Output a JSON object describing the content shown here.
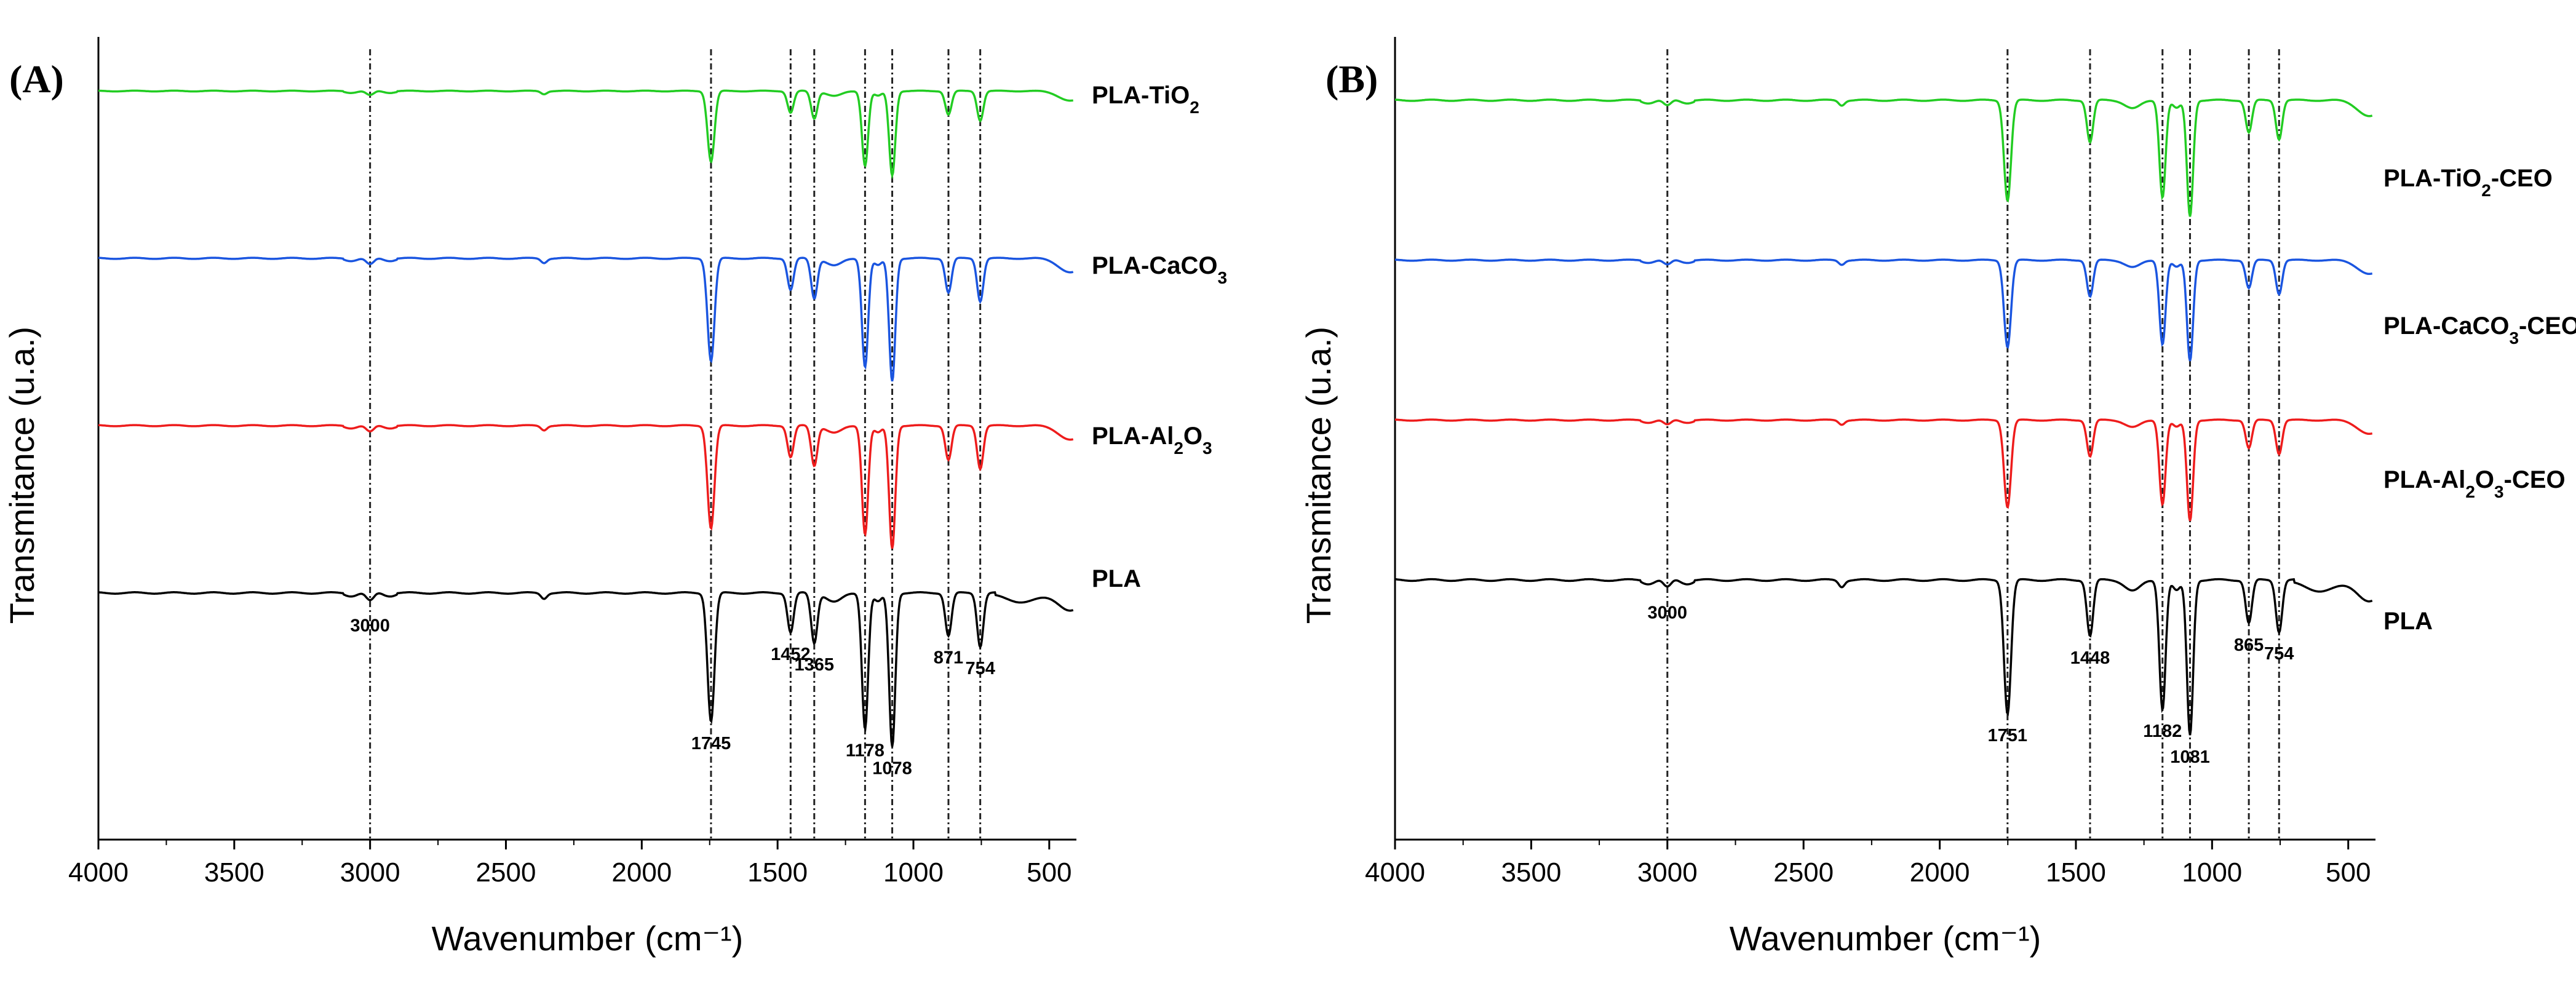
{
  "chart_data": [
    {
      "type": "line",
      "panel": "(A)",
      "xlabel": "Wavenumber (cm⁻¹)",
      "ylabel": "Transmitance (u.a.)",
      "xlim": [
        4000,
        400
      ],
      "x_ticks": [
        4000,
        3500,
        3000,
        2500,
        2000,
        1500,
        1000,
        500
      ],
      "grid": false,
      "legend": "right, beside each curve",
      "marker_lines": [
        3000,
        1745,
        1452,
        1365,
        1178,
        1078,
        871,
        754
      ],
      "series": [
        {
          "name": "PLA-TiO₂",
          "color": "#22cc22",
          "offset": 3,
          "scale": 0.55
        },
        {
          "name": "PLA-CaCO₃",
          "color": "#1a55e0",
          "offset": 2,
          "scale": 0.8
        },
        {
          "name": "PLA-Al₂O₃",
          "color": "#ee1c1c",
          "offset": 1,
          "scale": 0.8
        },
        {
          "name": "PLA",
          "color": "#000000",
          "offset": 0,
          "scale": 1.0
        }
      ],
      "peaks": [
        {
          "wavenumber": 3000,
          "label": "3000",
          "depth": 0.06
        },
        {
          "wavenumber": 1745,
          "label": "1745",
          "depth": 0.72
        },
        {
          "wavenumber": 1452,
          "label": "1452",
          "depth": 0.22
        },
        {
          "wavenumber": 1365,
          "label": "1365",
          "depth": 0.28
        },
        {
          "wavenumber": 1178,
          "label": "1178",
          "depth": 0.76
        },
        {
          "wavenumber": 1078,
          "label": "1078",
          "depth": 0.86
        },
        {
          "wavenumber": 871,
          "label": "871",
          "depth": 0.24
        },
        {
          "wavenumber": 754,
          "label": "754",
          "depth": 0.3
        }
      ]
    },
    {
      "type": "line",
      "panel": "(B)",
      "xlabel": "Wavenumber (cm⁻¹)",
      "ylabel": "Transmitance (u.a.)",
      "xlim": [
        4000,
        400
      ],
      "x_ticks": [
        4000,
        3500,
        3000,
        2500,
        2000,
        1500,
        1000,
        500
      ],
      "grid": false,
      "legend": "right, beside each curve",
      "marker_lines": [
        3000,
        1751,
        1448,
        1182,
        1081,
        865,
        754
      ],
      "series": [
        {
          "name": "PLA-TiO₂-CEO",
          "color": "#22cc22",
          "offset": 3,
          "scale": 0.75
        },
        {
          "name": "PLA-CaCO₃-CEO",
          "color": "#1a55e0",
          "offset": 2,
          "scale": 0.65
        },
        {
          "name": "PLA-Al₂O₃-CEO",
          "color": "#ee1c1c",
          "offset": 1,
          "scale": 0.65
        },
        {
          "name": "PLA",
          "color": "#000000",
          "offset": 0,
          "scale": 1.0
        }
      ],
      "peaks": [
        {
          "wavenumber": 3000,
          "label": "3000",
          "depth": 0.05
        },
        {
          "wavenumber": 1751,
          "label": "1751",
          "depth": 0.62
        },
        {
          "wavenumber": 1448,
          "label": "1448",
          "depth": 0.26
        },
        {
          "wavenumber": 1182,
          "label": "1182",
          "depth": 0.6
        },
        {
          "wavenumber": 1081,
          "label": "1081",
          "depth": 0.72
        },
        {
          "wavenumber": 865,
          "label": "865",
          "depth": 0.2
        },
        {
          "wavenumber": 754,
          "label": "754",
          "depth": 0.24
        }
      ]
    }
  ]
}
